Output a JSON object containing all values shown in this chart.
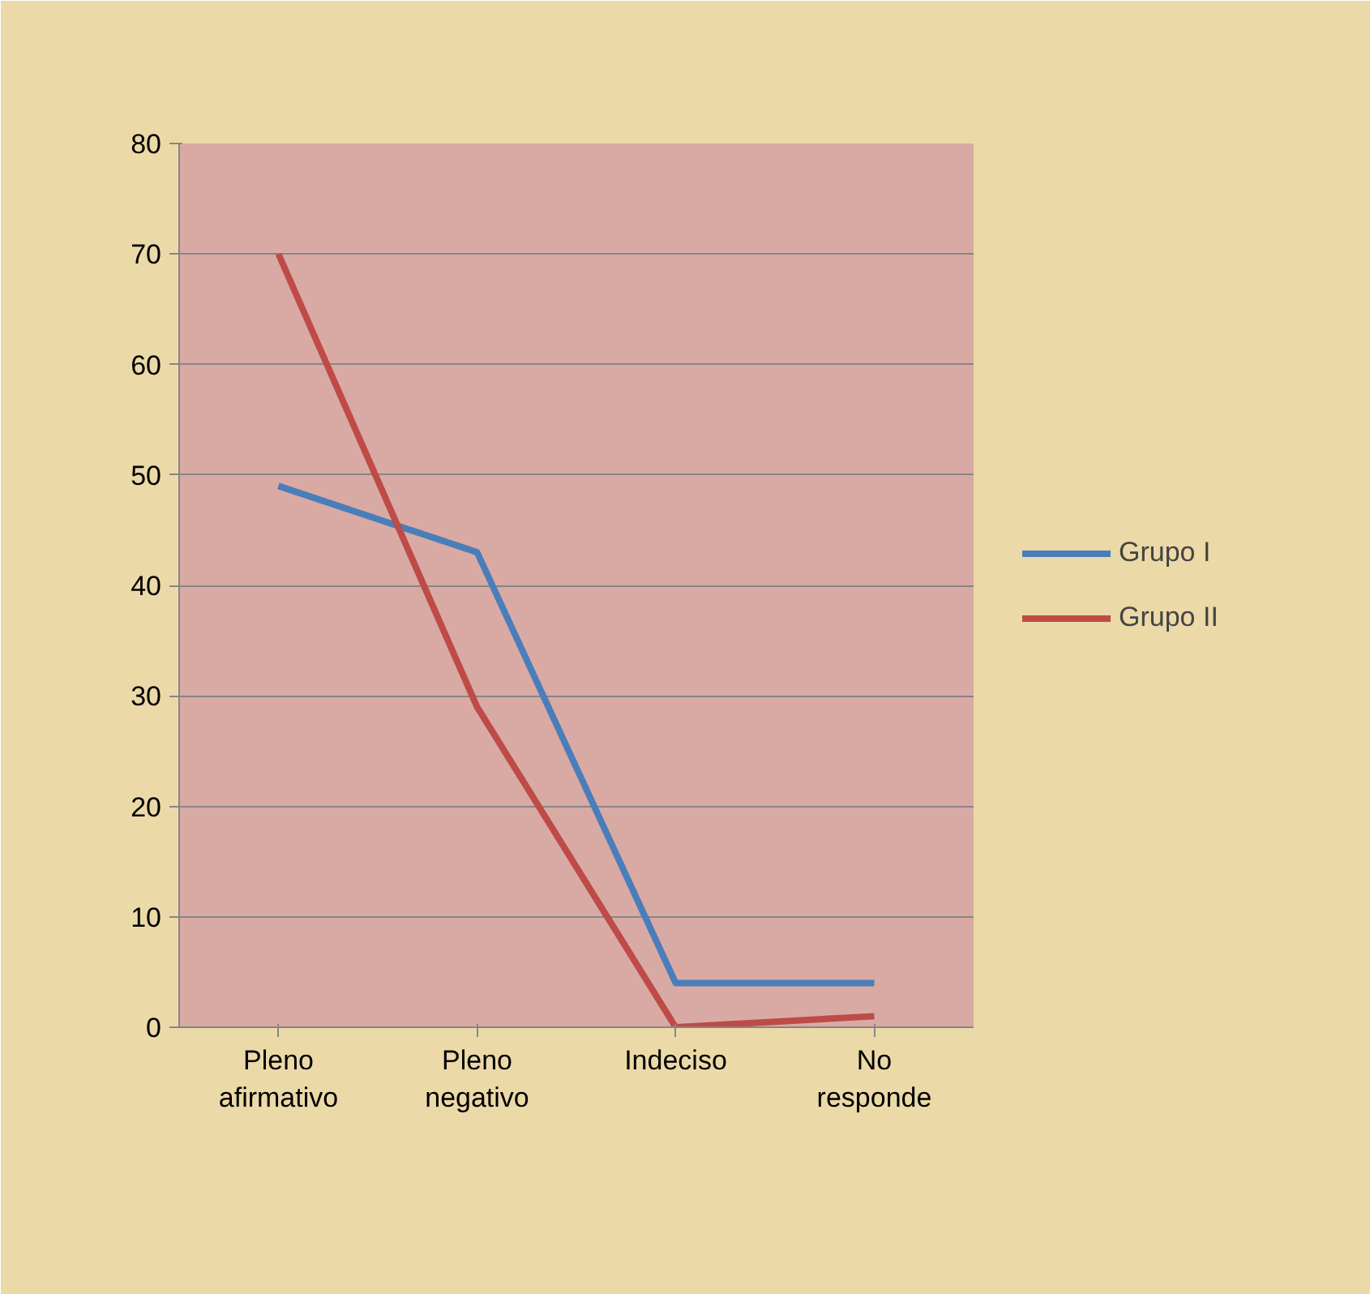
{
  "chart_data": {
    "type": "line",
    "categories": [
      "Pleno afirmativo",
      "Pleno negativo",
      "Indeciso",
      "No responde"
    ],
    "series": [
      {
        "name": "Grupo I",
        "color": "#4a7ebb",
        "values": [
          49,
          43,
          4,
          4
        ]
      },
      {
        "name": "Grupo II",
        "color": "#be4b48",
        "values": [
          70,
          29,
          0,
          1
        ]
      }
    ],
    "ylim": [
      0,
      80
    ],
    "yticks": [
      0,
      10,
      20,
      30,
      40,
      50,
      60,
      70,
      80
    ],
    "grid": "y",
    "legend": "right",
    "marker": "none",
    "line_style": "solid"
  }
}
